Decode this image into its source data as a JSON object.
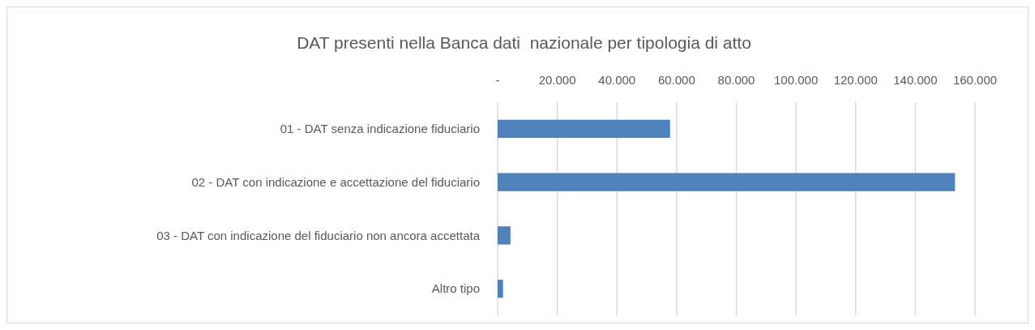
{
  "chart_data": {
    "type": "bar",
    "orientation": "horizontal",
    "title": "DAT presenti nella Banca dati  nazionale per tipologia di atto",
    "categories": [
      "01 - DAT senza indicazione fiduciario",
      "02 - DAT con indicazione e accettazione del fiduciario",
      "03 - DAT con indicazione del fiduciario non ancora accettata",
      "Altro tipo"
    ],
    "values": [
      57800,
      153300,
      4300,
      1800
    ],
    "color": "#4f81bd",
    "xlim": [
      0,
      160000
    ],
    "xticks": [
      {
        "value": 0,
        "label": "-"
      },
      {
        "value": 20000,
        "label": "20.000"
      },
      {
        "value": 40000,
        "label": "40.000"
      },
      {
        "value": 60000,
        "label": "60.000"
      },
      {
        "value": 80000,
        "label": "80.000"
      },
      {
        "value": 100000,
        "label": "100.000"
      },
      {
        "value": 120000,
        "label": "120.000"
      },
      {
        "value": 140000,
        "label": "140.000"
      },
      {
        "value": 160000,
        "label": "160.000"
      }
    ],
    "grid": "x"
  }
}
